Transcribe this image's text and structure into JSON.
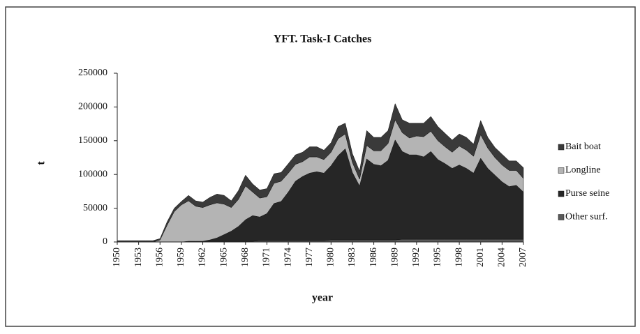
{
  "chart_data": {
    "type": "stacked_area",
    "title": "YFT. Task-I Catches",
    "x_label": "year",
    "y_label": "t",
    "categories": [
      "1950",
      null,
      null,
      "1953",
      null,
      null,
      "1956",
      null,
      null,
      "1959",
      null,
      null,
      "1962",
      null,
      null,
      "1965",
      null,
      null,
      "1968",
      null,
      null,
      "1971",
      null,
      null,
      "1974",
      null,
      null,
      "1977",
      null,
      null,
      "1980",
      null,
      null,
      "1983",
      null,
      null,
      "1986",
      null,
      null,
      "1989",
      null,
      null,
      "1992",
      null,
      null,
      "1995",
      null,
      null,
      "1998",
      null,
      null,
      "2001",
      null,
      null,
      "2004",
      null,
      null,
      "2007"
    ],
    "ylim": [
      0,
      250000
    ],
    "yticks": [
      0,
      50000,
      100000,
      150000,
      200000,
      250000
    ],
    "legend": "right",
    "series": [
      {
        "name": "Bait boat",
        "color": "#3a3a3a",
        "values": [
          2000,
          2000,
          2000,
          2000,
          2000,
          2000,
          2000,
          5000,
          5000,
          5000,
          8000,
          8000,
          8000,
          11000,
          13000,
          13000,
          10000,
          13000,
          16000,
          12000,
          12000,
          12000,
          14000,
          13000,
          14000,
          14000,
          14000,
          15000,
          15000,
          14000,
          14000,
          18000,
          16000,
          13000,
          12000,
          22000,
          20000,
          20000,
          19000,
          24000,
          19000,
          22000,
          19000,
          20000,
          22000,
          21000,
          20000,
          18000,
          18000,
          19000,
          18000,
          21000,
          16000,
          15000,
          16000,
          14000,
          14000,
          16000
        ]
      },
      {
        "name": "Longline",
        "color": "#b4b4b4",
        "values": [
          0,
          0,
          0,
          0,
          0,
          0,
          3000,
          25000,
          45000,
          55000,
          60000,
          52000,
          50000,
          52000,
          52000,
          45000,
          35000,
          40000,
          50000,
          35000,
          28000,
          25000,
          30000,
          30000,
          28000,
          25000,
          22000,
          24000,
          22000,
          20000,
          20000,
          25000,
          22000,
          15000,
          10000,
          20000,
          20000,
          22000,
          25000,
          30000,
          28000,
          25000,
          28000,
          30000,
          30000,
          28000,
          25000,
          24000,
          28000,
          27000,
          25000,
          35000,
          30000,
          26000,
          25000,
          24000,
          22000,
          20000
        ]
      },
      {
        "name": "Purse seine",
        "color": "#262626",
        "values": [
          0,
          0,
          0,
          0,
          0,
          0,
          0,
          0,
          0,
          0,
          0,
          0,
          0,
          2000,
          5000,
          10000,
          15000,
          22000,
          32000,
          38000,
          35000,
          40000,
          55000,
          58000,
          72000,
          88000,
          95000,
          100000,
          102000,
          100000,
          110000,
          125000,
          135000,
          100000,
          80000,
          120000,
          112000,
          110000,
          118000,
          148000,
          130000,
          125000,
          125000,
          122000,
          130000,
          118000,
          112000,
          105000,
          110000,
          105000,
          98000,
          120000,
          105000,
          95000,
          85000,
          78000,
          80000,
          70000
        ]
      },
      {
        "name": "Other surf.",
        "color": "#5a5a5a",
        "values": [
          0,
          0,
          0,
          0,
          0,
          0,
          0,
          0,
          0,
          0,
          1000,
          1000,
          1000,
          1000,
          1000,
          1000,
          1000,
          1000,
          1000,
          1000,
          2000,
          2000,
          2000,
          2000,
          2000,
          2000,
          2000,
          2000,
          2000,
          2000,
          3000,
          3000,
          3000,
          3000,
          3000,
          3000,
          3000,
          3000,
          3000,
          3000,
          4000,
          4000,
          4000,
          4000,
          4000,
          4000,
          4000,
          4000,
          4000,
          4000,
          4000,
          4000,
          4000,
          4000,
          4000,
          4000,
          4000,
          4000
        ]
      }
    ]
  }
}
